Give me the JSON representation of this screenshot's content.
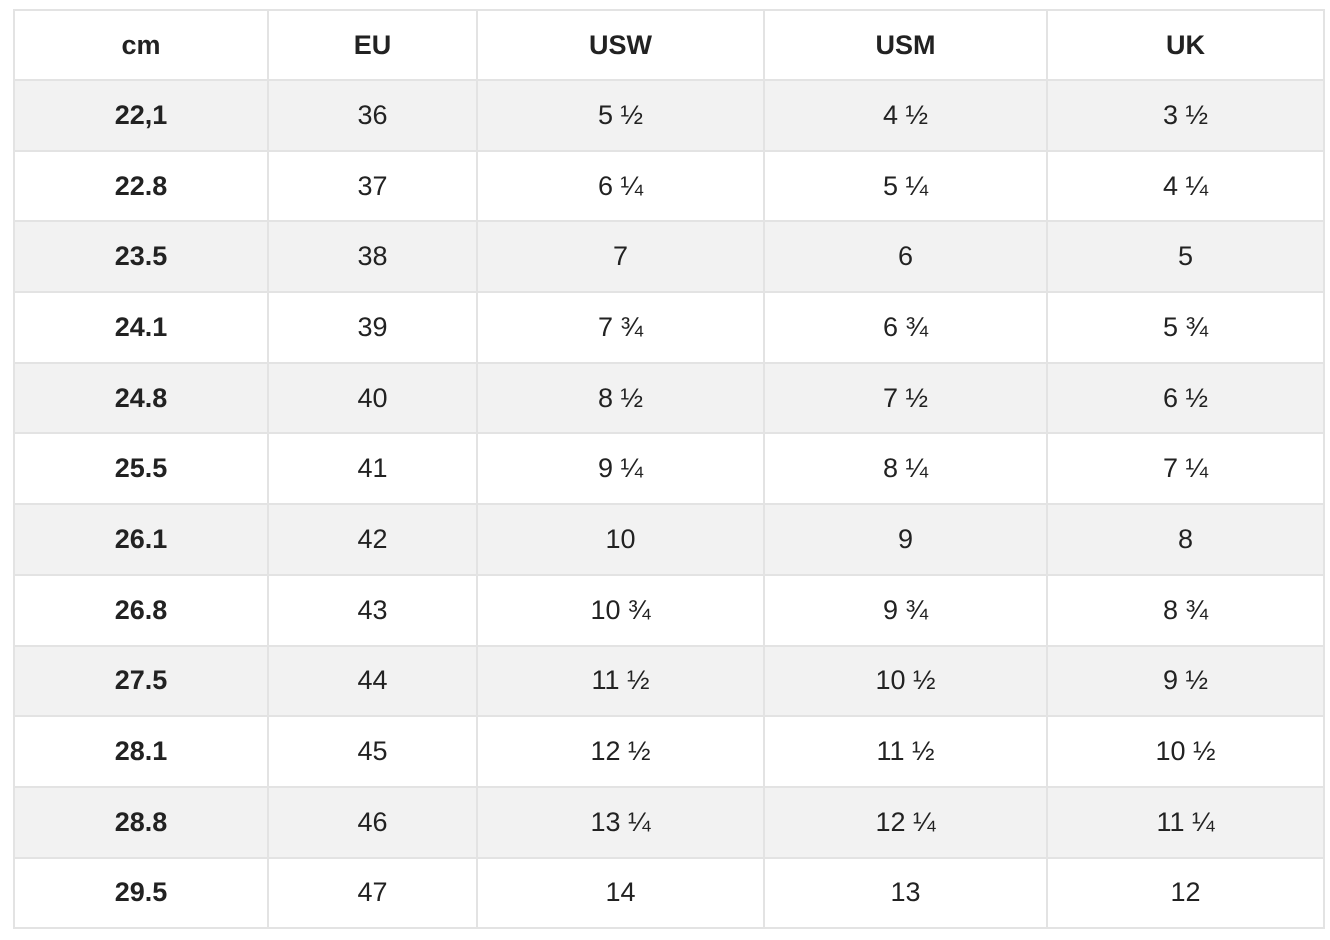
{
  "table": {
    "headers": [
      "cm",
      "EU",
      "USW",
      "USM",
      "UK"
    ],
    "rows": [
      [
        "22,1",
        "36",
        "5 ½",
        "4 ½",
        "3 ½"
      ],
      [
        "22.8",
        "37",
        "6 ¼",
        "5 ¼",
        "4 ¼"
      ],
      [
        "23.5",
        "38",
        "7",
        "6",
        "5"
      ],
      [
        "24.1",
        "39",
        "7 ¾",
        "6 ¾",
        "5 ¾"
      ],
      [
        "24.8",
        "40",
        "8 ½",
        "7 ½",
        "6 ½"
      ],
      [
        "25.5",
        "41",
        "9 ¼",
        "8 ¼",
        "7 ¼"
      ],
      [
        "26.1",
        "42",
        "10",
        "9",
        "8"
      ],
      [
        "26.8",
        "43",
        "10 ¾",
        "9 ¾",
        "8 ¾"
      ],
      [
        "27.5",
        "44",
        "11 ½",
        "10 ½",
        "9 ½"
      ],
      [
        "28.1",
        "45",
        "12 ½",
        "11 ½",
        "10 ½"
      ],
      [
        "28.8",
        "46",
        "13 ¼",
        "12 ¼",
        "11 ¼"
      ],
      [
        "29.5",
        "47",
        "14",
        "13",
        "12"
      ]
    ]
  }
}
